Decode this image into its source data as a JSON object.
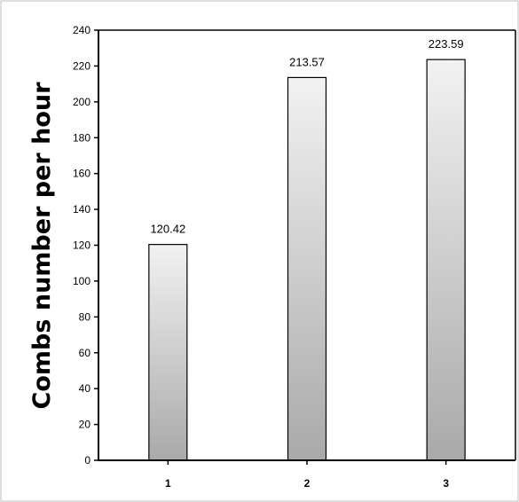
{
  "chart_data": {
    "type": "bar",
    "title": "",
    "xlabel": "",
    "ylabel": "Combs number per hour",
    "categories": [
      "1",
      "2",
      "3"
    ],
    "values": [
      120.42,
      213.57,
      223.59
    ],
    "data_labels": [
      "120.42",
      "213.57",
      "223.59"
    ],
    "ylim": [
      0,
      240
    ],
    "yticks": [
      0,
      20,
      40,
      60,
      80,
      100,
      120,
      140,
      160,
      180,
      200,
      220,
      240
    ],
    "ytick_labels": [
      "0",
      "20",
      "40",
      "60",
      "80",
      "100",
      "120",
      "140",
      "160",
      "180",
      "200",
      "220",
      "240"
    ],
    "grid": false,
    "legend": "none",
    "colors": {
      "bar_gradient_top": "#f2f2f2",
      "bar_gradient_bottom": "#a9a9a9",
      "bar_stroke": "#000000",
      "axis": "#000000",
      "frame": "#bfbfbf"
    }
  }
}
